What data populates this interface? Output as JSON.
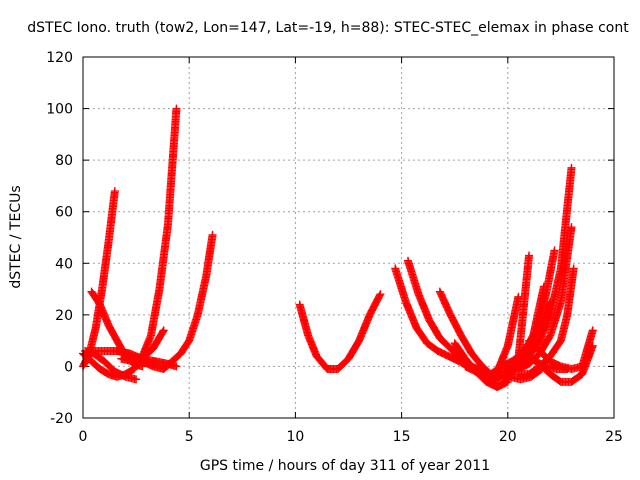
{
  "chart_data": {
    "type": "scatter",
    "title": "dSTEC Iono. truth (tow2, Lon=147, Lat=-19, h=88): STEC-STEC_elemax in phase cont",
    "xlabel": "GPS time / hours of day 311 of year 2011",
    "ylabel": "dSTEC  / TECUs",
    "xlim": [
      0,
      25
    ],
    "ylim": [
      -20,
      120
    ],
    "xticks": [
      0,
      5,
      10,
      15,
      20,
      25
    ],
    "yticks": [
      -20,
      0,
      20,
      40,
      60,
      80,
      100,
      120
    ],
    "grid": true,
    "marker": "plus",
    "color": "#ff0000",
    "series": [
      {
        "x": [
          0.0,
          0.4,
          0.8,
          1.2,
          1.6,
          2.0,
          2.4,
          2.8,
          3.2,
          3.6,
          4.0,
          4.4
        ],
        "y": [
          5,
          2,
          -1,
          -3,
          -4,
          -3,
          -1,
          4,
          12,
          30,
          55,
          100
        ]
      },
      {
        "x": [
          0.0,
          0.3,
          0.6,
          0.9,
          1.2,
          1.5
        ],
        "y": [
          0,
          5,
          15,
          30,
          48,
          68
        ]
      },
      {
        "x": [
          0.3,
          0.8,
          1.3,
          1.8,
          2.3,
          2.8,
          3.3,
          3.8,
          4.2,
          4.6,
          5.0,
          5.4,
          5.8,
          6.1
        ],
        "y": [
          6,
          6,
          6,
          6,
          4,
          2,
          0,
          -1,
          2,
          5,
          10,
          20,
          35,
          51
        ]
      },
      {
        "x": [
          0.4,
          0.8,
          1.2,
          1.6,
          2.0,
          2.4,
          2.8
        ],
        "y": [
          29,
          24,
          16,
          10,
          4,
          1,
          0
        ]
      },
      {
        "x": [
          0.1,
          0.5,
          1.0,
          1.5,
          2.0,
          2.5
        ],
        "y": [
          6,
          5,
          2,
          -2,
          -4,
          -5
        ]
      },
      {
        "x": [
          1.8,
          2.3,
          2.8,
          3.3,
          3.8
        ],
        "y": [
          3,
          2,
          3,
          7,
          14
        ]
      },
      {
        "x": [
          1.6,
          2.2,
          2.8,
          3.4,
          4.0,
          4.4
        ],
        "y": [
          6,
          5,
          3,
          2,
          1,
          0
        ]
      },
      {
        "x": [
          10.2,
          10.6,
          11.0,
          11.5,
          12.0,
          12.5,
          13.0,
          13.5,
          14.0
        ],
        "y": [
          24,
          12,
          4,
          -1,
          -1,
          3,
          10,
          20,
          28
        ]
      },
      {
        "x": [
          14.7,
          15.2,
          15.7,
          16.2,
          16.7,
          17.2,
          17.7,
          18.2,
          18.6
        ],
        "y": [
          38,
          25,
          15,
          9,
          6,
          4,
          2,
          0,
          -1
        ]
      },
      {
        "x": [
          15.3,
          15.8,
          16.3,
          16.8,
          17.3,
          17.8,
          18.3,
          18.8,
          19.3
        ],
        "y": [
          41,
          28,
          18,
          11,
          7,
          3,
          0,
          -2,
          -4
        ]
      },
      {
        "x": [
          16.8,
          17.3,
          17.8,
          18.3,
          18.8,
          19.2
        ],
        "y": [
          29,
          20,
          12,
          5,
          0,
          -3
        ]
      },
      {
        "x": [
          17.5,
          18.0,
          18.5,
          19.0,
          19.5,
          20.0
        ],
        "y": [
          9,
          3,
          -2,
          -6,
          -8,
          -6
        ]
      },
      {
        "x": [
          18.0,
          18.5,
          19.0,
          19.5,
          20.0,
          20.5,
          21.0
        ],
        "y": [
          0,
          -2,
          -5,
          -8,
          -5,
          3,
          43
        ]
      },
      {
        "x": [
          18.5,
          19.0,
          19.5,
          20.0,
          20.5
        ],
        "y": [
          -2,
          -4,
          -2,
          8,
          27
        ]
      },
      {
        "x": [
          19.0,
          19.5,
          20.0,
          20.5,
          21.0,
          21.5,
          22.0
        ],
        "y": [
          -6,
          -5,
          -1,
          4,
          8,
          15,
          25
        ]
      },
      {
        "x": [
          19.2,
          19.7,
          20.2,
          20.7,
          21.2,
          21.7
        ],
        "y": [
          -3,
          0,
          2,
          5,
          12,
          31
        ]
      },
      {
        "x": [
          19.5,
          20.0,
          20.5,
          21.0,
          21.5,
          22.0,
          22.5,
          23.0
        ],
        "y": [
          -4,
          -3,
          0,
          4,
          10,
          20,
          38,
          77
        ]
      },
      {
        "x": [
          20.0,
          20.5,
          21.0,
          21.5,
          22.0,
          22.5,
          23.0
        ],
        "y": [
          -2,
          -1,
          1,
          5,
          12,
          25,
          54
        ]
      },
      {
        "x": [
          20.2,
          20.6,
          21.0,
          21.4,
          21.8,
          22.2
        ],
        "y": [
          0,
          3,
          8,
          16,
          28,
          45
        ]
      },
      {
        "x": [
          20.5,
          21.0,
          21.5,
          22.0,
          22.5,
          22.8,
          23.1
        ],
        "y": [
          -3,
          -3,
          0,
          4,
          10,
          20,
          38
        ]
      },
      {
        "x": [
          19.6,
          20.1,
          20.6,
          21.1,
          21.6
        ],
        "y": [
          -3,
          -4,
          -5,
          -4,
          -1
        ]
      },
      {
        "x": [
          21.0,
          21.5,
          22.0,
          22.5,
          23.0,
          23.5,
          24.0
        ],
        "y": [
          10,
          6,
          2,
          0,
          -1,
          0,
          14
        ]
      },
      {
        "x": [
          21.5,
          22.0,
          22.5,
          23.0,
          23.5,
          24.0
        ],
        "y": [
          1,
          -3,
          -6,
          -6,
          -3,
          8
        ]
      },
      {
        "x": [
          20.8,
          21.3,
          21.8,
          22.3,
          22.8
        ],
        "y": [
          5,
          2,
          0,
          -1,
          -1
        ]
      }
    ]
  }
}
